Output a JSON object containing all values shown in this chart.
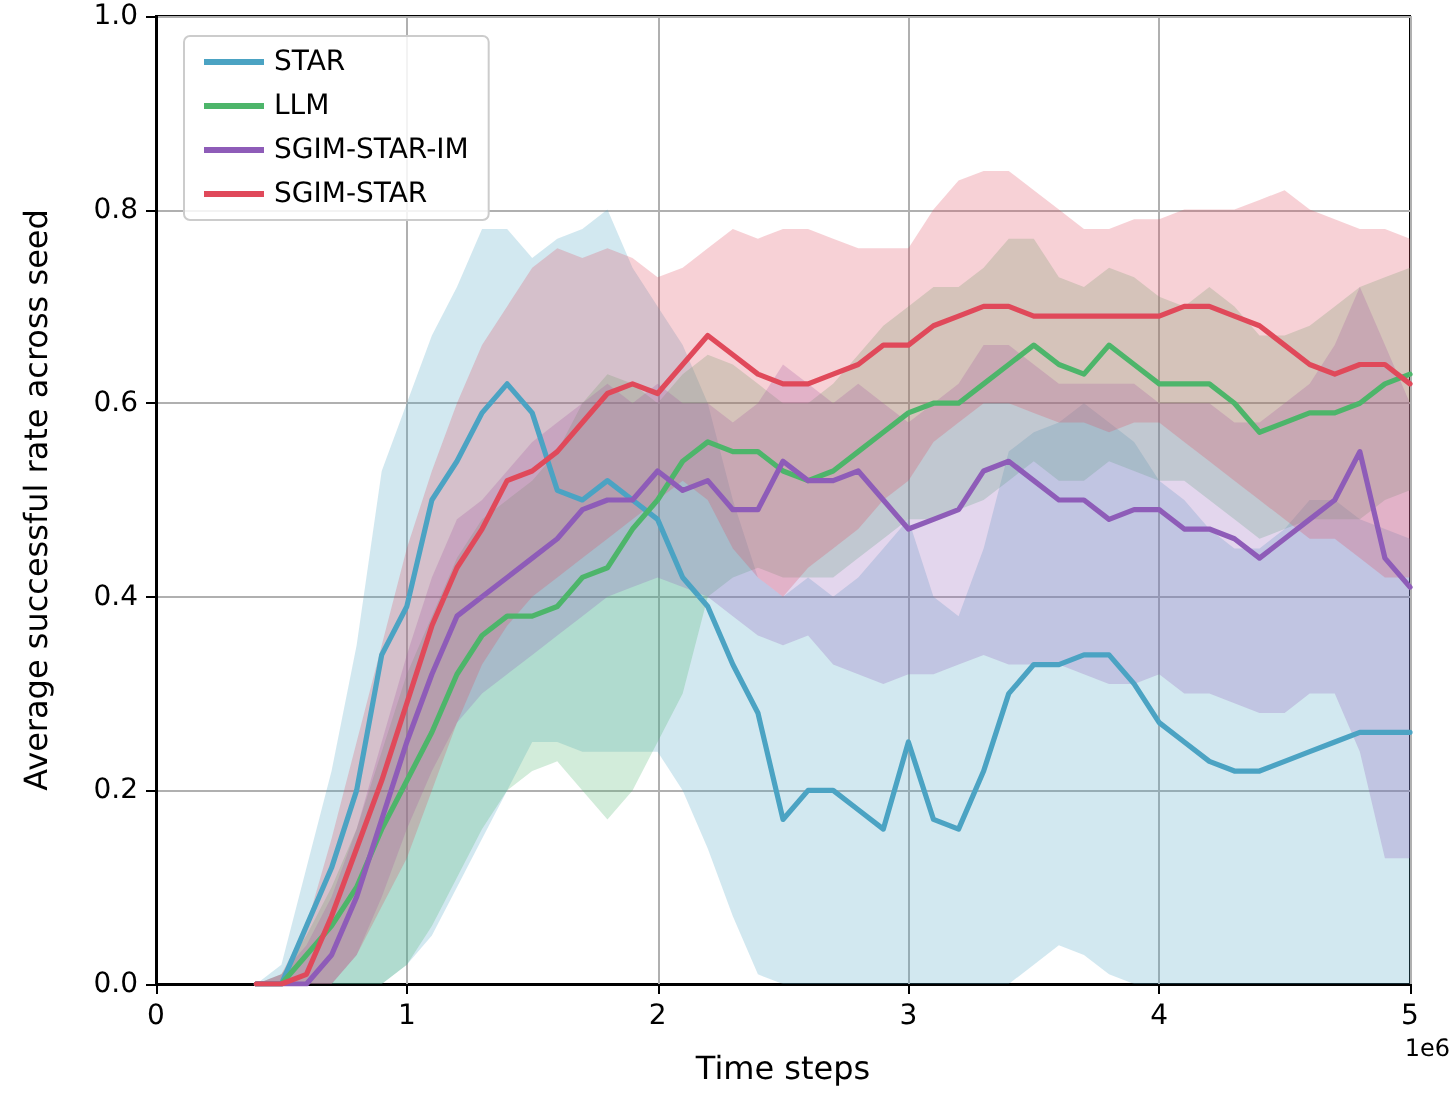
{
  "chart_data": {
    "type": "line",
    "xlabel": "Time steps",
    "ylabel": "Average successful rate across seed",
    "annotations": [
      "1e6"
    ],
    "xlim": [
      0,
      5
    ],
    "ylim": [
      0,
      1
    ],
    "xticks": [
      0,
      1,
      2,
      3,
      4,
      5
    ],
    "yticks": [
      {
        "value": 0,
        "label": "0.0"
      },
      {
        "value": 0.2,
        "label": "0.2"
      },
      {
        "value": 0.4,
        "label": "0.4"
      },
      {
        "value": 0.6,
        "label": "0.6"
      },
      {
        "value": 0.8,
        "label": "0.8"
      },
      {
        "value": 1,
        "label": "1.0"
      }
    ],
    "grid": true,
    "legend": "top left",
    "line_style": "solid",
    "marker": "none",
    "x": [
      0.4,
      0.5,
      0.6,
      0.7,
      0.8,
      0.9,
      1.0,
      1.1,
      1.2,
      1.3,
      1.4,
      1.5,
      1.6,
      1.7,
      1.8,
      1.9,
      2.0,
      2.1,
      2.2,
      2.3,
      2.4,
      2.5,
      2.6,
      2.7,
      2.8,
      2.9,
      3.0,
      3.1,
      3.2,
      3.3,
      3.4,
      3.5,
      3.6,
      3.7,
      3.8,
      3.9,
      4.0,
      4.1,
      4.2,
      4.3,
      4.4,
      4.5,
      4.6,
      4.7,
      4.8,
      4.9,
      5.0
    ],
    "series": [
      {
        "name": "STAR",
        "color": "#4ba3c3",
        "values": [
          0,
          0,
          0.06,
          0.12,
          0.2,
          0.34,
          0.39,
          0.5,
          0.54,
          0.59,
          0.62,
          0.59,
          0.51,
          0.5,
          0.52,
          0.5,
          0.48,
          0.42,
          0.39,
          0.33,
          0.28,
          0.17,
          0.2,
          0.2,
          0.18,
          0.16,
          0.25,
          0.17,
          0.16,
          0.22,
          0.3,
          0.33,
          0.33,
          0.34,
          0.34,
          0.31,
          0.27,
          0.25,
          0.23,
          0.22,
          0.22,
          0.23,
          0.24,
          0.25,
          0.26,
          0.26,
          0.26
        ],
        "upper": [
          0,
          0.02,
          0.12,
          0.22,
          0.35,
          0.53,
          0.6,
          0.67,
          0.72,
          0.78,
          0.78,
          0.75,
          0.77,
          0.78,
          0.8,
          0.74,
          0.7,
          0.66,
          0.6,
          0.5,
          0.42,
          0.4,
          0.42,
          0.4,
          0.42,
          0.45,
          0.48,
          0.4,
          0.38,
          0.45,
          0.55,
          0.57,
          0.58,
          0.6,
          0.58,
          0.56,
          0.52,
          0.5,
          0.47,
          0.45,
          0.45,
          0.47,
          0.5,
          0.5,
          0.48,
          0.47,
          0.46
        ],
        "lower": [
          0,
          0,
          0,
          0,
          0,
          0,
          0.02,
          0.05,
          0.1,
          0.15,
          0.2,
          0.25,
          0.25,
          0.24,
          0.24,
          0.24,
          0.24,
          0.2,
          0.14,
          0.07,
          0.01,
          0,
          0,
          0,
          0,
          0,
          0,
          0,
          0,
          0,
          0,
          0.02,
          0.04,
          0.03,
          0.01,
          0,
          0,
          0,
          0,
          0,
          0,
          0,
          0,
          0,
          0,
          0,
          0
        ]
      },
      {
        "name": "LLM",
        "color": "#4db56a",
        "values": [
          0,
          0,
          0.03,
          0.06,
          0.1,
          0.16,
          0.21,
          0.26,
          0.32,
          0.36,
          0.38,
          0.38,
          0.39,
          0.42,
          0.43,
          0.47,
          0.5,
          0.54,
          0.56,
          0.55,
          0.55,
          0.53,
          0.52,
          0.53,
          0.55,
          0.57,
          0.59,
          0.6,
          0.6,
          0.62,
          0.64,
          0.66,
          0.64,
          0.63,
          0.66,
          0.64,
          0.62,
          0.62,
          0.62,
          0.6,
          0.57,
          0.58,
          0.59,
          0.59,
          0.6,
          0.62,
          0.63
        ],
        "upper": [
          0,
          0.01,
          0.05,
          0.1,
          0.16,
          0.24,
          0.32,
          0.38,
          0.44,
          0.48,
          0.5,
          0.52,
          0.55,
          0.6,
          0.63,
          0.62,
          0.6,
          0.63,
          0.65,
          0.64,
          0.62,
          0.6,
          0.6,
          0.62,
          0.65,
          0.68,
          0.7,
          0.72,
          0.72,
          0.74,
          0.77,
          0.77,
          0.73,
          0.72,
          0.74,
          0.73,
          0.71,
          0.7,
          0.72,
          0.7,
          0.67,
          0.67,
          0.68,
          0.7,
          0.72,
          0.73,
          0.74
        ],
        "lower": [
          0,
          0,
          0,
          0,
          0,
          0,
          0.02,
          0.06,
          0.11,
          0.16,
          0.2,
          0.22,
          0.23,
          0.2,
          0.17,
          0.2,
          0.25,
          0.3,
          0.4,
          0.42,
          0.43,
          0.42,
          0.42,
          0.42,
          0.44,
          0.46,
          0.48,
          0.48,
          0.49,
          0.5,
          0.52,
          0.54,
          0.52,
          0.52,
          0.54,
          0.53,
          0.52,
          0.52,
          0.5,
          0.48,
          0.46,
          0.47,
          0.48,
          0.48,
          0.48,
          0.5,
          0.51
        ]
      },
      {
        "name": "SGIM-STAR-IM",
        "color": "#8e5cb8",
        "values": [
          0,
          0,
          0,
          0.03,
          0.09,
          0.17,
          0.25,
          0.32,
          0.38,
          0.4,
          0.42,
          0.44,
          0.46,
          0.49,
          0.5,
          0.5,
          0.53,
          0.51,
          0.52,
          0.49,
          0.49,
          0.54,
          0.52,
          0.52,
          0.53,
          0.5,
          0.47,
          0.48,
          0.49,
          0.53,
          0.54,
          0.52,
          0.5,
          0.5,
          0.48,
          0.49,
          0.49,
          0.47,
          0.47,
          0.46,
          0.44,
          0.46,
          0.48,
          0.5,
          0.55,
          0.44,
          0.41
        ],
        "upper": [
          0,
          0.01,
          0.04,
          0.09,
          0.16,
          0.25,
          0.34,
          0.42,
          0.48,
          0.5,
          0.53,
          0.56,
          0.58,
          0.6,
          0.62,
          0.6,
          0.62,
          0.6,
          0.6,
          0.58,
          0.6,
          0.64,
          0.62,
          0.6,
          0.62,
          0.6,
          0.58,
          0.6,
          0.62,
          0.66,
          0.66,
          0.64,
          0.62,
          0.62,
          0.62,
          0.62,
          0.6,
          0.6,
          0.6,
          0.58,
          0.58,
          0.6,
          0.62,
          0.66,
          0.72,
          0.66,
          0.6
        ],
        "lower": [
          0,
          0,
          0,
          0,
          0.03,
          0.09,
          0.16,
          0.22,
          0.27,
          0.3,
          0.32,
          0.34,
          0.36,
          0.38,
          0.4,
          0.41,
          0.42,
          0.41,
          0.4,
          0.38,
          0.36,
          0.35,
          0.36,
          0.33,
          0.32,
          0.31,
          0.32,
          0.32,
          0.33,
          0.34,
          0.33,
          0.33,
          0.33,
          0.32,
          0.31,
          0.31,
          0.32,
          0.3,
          0.3,
          0.29,
          0.28,
          0.28,
          0.3,
          0.3,
          0.24,
          0.13,
          0.13
        ]
      },
      {
        "name": "SGIM-STAR",
        "color": "#e0495a",
        "values": [
          0,
          0,
          0.01,
          0.07,
          0.14,
          0.21,
          0.29,
          0.37,
          0.43,
          0.47,
          0.52,
          0.53,
          0.55,
          0.58,
          0.61,
          0.62,
          0.61,
          0.64,
          0.67,
          0.65,
          0.63,
          0.62,
          0.62,
          0.63,
          0.64,
          0.66,
          0.66,
          0.68,
          0.69,
          0.7,
          0.7,
          0.69,
          0.69,
          0.69,
          0.69,
          0.69,
          0.69,
          0.7,
          0.7,
          0.69,
          0.68,
          0.66,
          0.64,
          0.63,
          0.64,
          0.64,
          0.62
        ],
        "upper": [
          0,
          0.01,
          0.06,
          0.15,
          0.25,
          0.35,
          0.45,
          0.53,
          0.6,
          0.66,
          0.7,
          0.74,
          0.76,
          0.75,
          0.76,
          0.75,
          0.73,
          0.74,
          0.76,
          0.78,
          0.77,
          0.78,
          0.78,
          0.77,
          0.76,
          0.76,
          0.76,
          0.8,
          0.83,
          0.84,
          0.84,
          0.82,
          0.8,
          0.78,
          0.78,
          0.79,
          0.79,
          0.8,
          0.8,
          0.8,
          0.81,
          0.82,
          0.8,
          0.79,
          0.78,
          0.78,
          0.77
        ],
        "lower": [
          0,
          0,
          0,
          0,
          0.03,
          0.08,
          0.13,
          0.2,
          0.27,
          0.33,
          0.37,
          0.4,
          0.42,
          0.44,
          0.46,
          0.48,
          0.5,
          0.52,
          0.5,
          0.45,
          0.42,
          0.4,
          0.43,
          0.45,
          0.47,
          0.5,
          0.52,
          0.56,
          0.58,
          0.6,
          0.6,
          0.59,
          0.58,
          0.58,
          0.57,
          0.58,
          0.58,
          0.56,
          0.54,
          0.52,
          0.5,
          0.48,
          0.46,
          0.46,
          0.44,
          0.42,
          0.42
        ]
      }
    ]
  }
}
